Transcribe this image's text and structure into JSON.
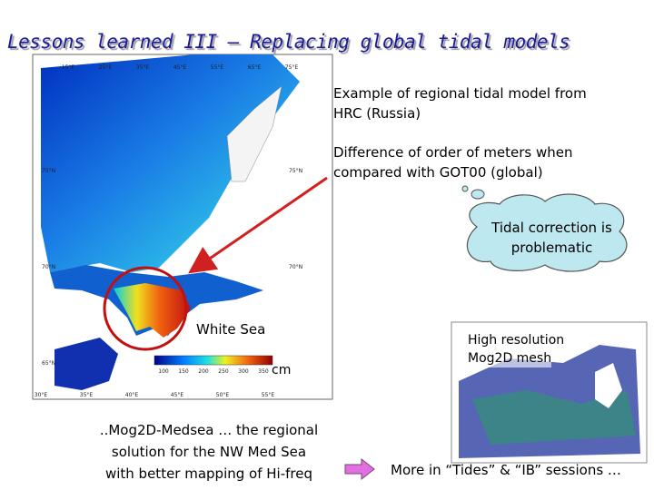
{
  "header": {
    "title": "Lessons learned III – Replacing global tidal models"
  },
  "right_text": [
    "Example of regional tidal model from",
    "HRC (Russia)",
    "Difference of order of meters when",
    "compared with GOT00 (global)"
  ],
  "cloud": [
    "Tidal correction is",
    "problematic"
  ],
  "map": {
    "region_label": "White Sea",
    "colorbar_unit": "cm",
    "colorbar_labels": [
      "100",
      "150",
      "200",
      "250",
      "300",
      "350"
    ],
    "top_labels": [
      "15°E",
      "25°E",
      "35°E",
      "45°E",
      "55°E",
      "65°E",
      "75°E"
    ],
    "bottom_labels": [
      "30°E",
      "35°E",
      "40°E",
      "45°E",
      "50°E",
      "55°E"
    ],
    "left_labels": [
      "75°N",
      "70°N",
      "65°N"
    ],
    "right_labels": [
      "75°N",
      "70°N"
    ]
  },
  "mesh": [
    "High resolution",
    "Mog2D mesh"
  ],
  "bottom_left": [
    "..Mog2D-Medsea … the regional",
    "solution for the NW Med Sea",
    "with better mapping of Hi-freq"
  ],
  "footer_note": "More in “Tides” & “IB” sessions …"
}
